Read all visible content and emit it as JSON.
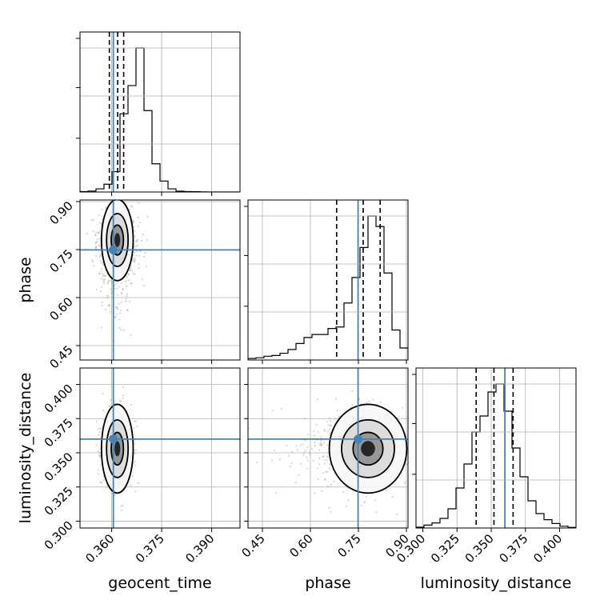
{
  "chart_data": {
    "type": "corner",
    "parameters": [
      "geocent_time",
      "phase",
      "luminosity_distance"
    ],
    "axis_labels": {
      "geocent_time": "geocent_time",
      "phase": "phase",
      "luminosity_distance": "luminosity_distance"
    },
    "ranges": {
      "geocent_time": [
        0.3505,
        0.3985
      ],
      "phase": [
        0.405,
        0.905
      ],
      "luminosity_distance": [
        0.295,
        0.412
      ]
    },
    "ticks": {
      "geocent_time": [
        "0.360",
        "0.375",
        "0.390"
      ],
      "phase": [
        "0.45",
        "0.60",
        "0.75",
        "0.90"
      ],
      "luminosity_distance": [
        "0.300",
        "0.325",
        "0.350",
        "0.375",
        "0.400"
      ]
    },
    "truths": {
      "geocent_time": 0.3605,
      "phase": 0.749,
      "luminosity_distance": 0.36
    },
    "quantiles": {
      "geocent_time": [
        0.3593,
        0.3618,
        0.3636
      ],
      "phase": [
        0.682,
        0.765,
        0.818
      ],
      "luminosity_distance": [
        0.339,
        0.352,
        0.366
      ]
    },
    "histograms": {
      "geocent_time": [
        0.003,
        0.006,
        0.02,
        0.05,
        0.13,
        0.5,
        0.68,
        0.92,
        0.52,
        0.18,
        0.07,
        0.02,
        0.005,
        0.003,
        0.002,
        0.001,
        0,
        0,
        0,
        0
      ],
      "phase": [
        0.01,
        0.015,
        0.025,
        0.03,
        0.045,
        0.07,
        0.11,
        0.15,
        0.17,
        0.17,
        0.21,
        0.22,
        0.38,
        0.55,
        0.75,
        0.96,
        0.89,
        0.58,
        0.2,
        0.08
      ],
      "luminosity_distance": [
        0.005,
        0.018,
        0.032,
        0.06,
        0.12,
        0.25,
        0.4,
        0.6,
        0.7,
        0.85,
        0.9,
        0.73,
        0.5,
        0.32,
        0.17,
        0.09,
        0.052,
        0.028,
        0.011,
        0.004
      ]
    },
    "posterior_peak": {
      "geocent_time": 0.3617,
      "phase": 0.78,
      "luminosity_distance": 0.353
    },
    "grid": true
  }
}
